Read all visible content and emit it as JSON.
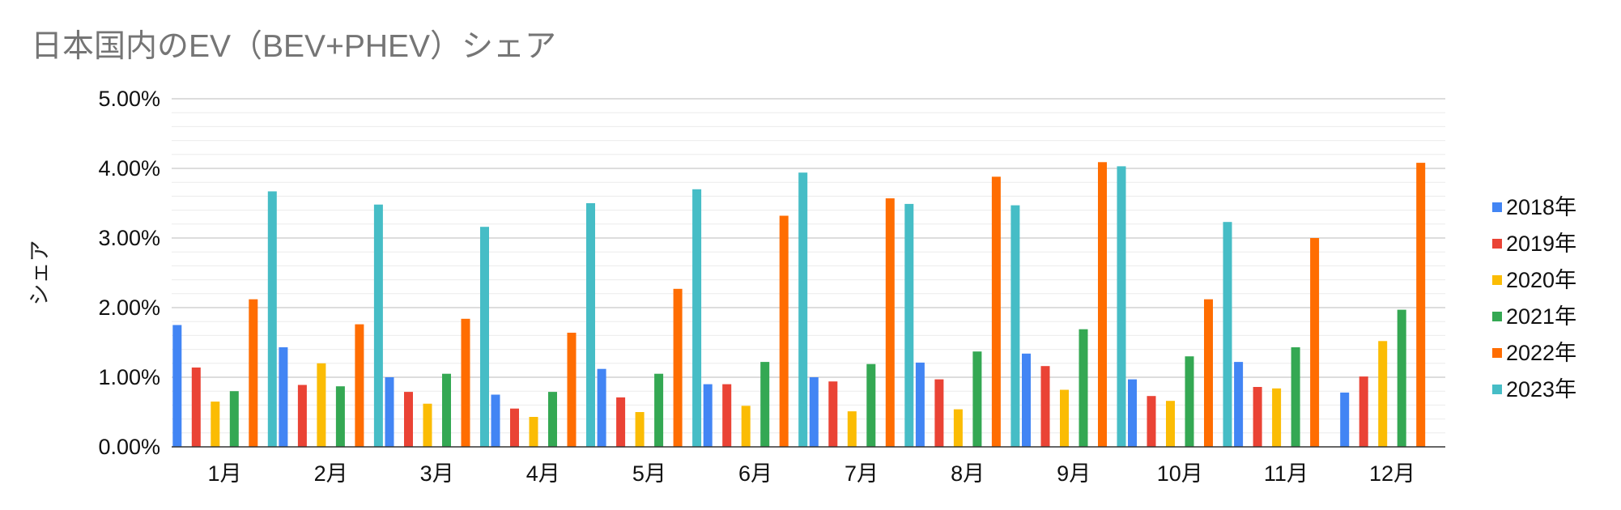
{
  "chart_data": {
    "type": "bar",
    "title": "日本国内のEV（BEV+PHEV）シェア",
    "ylabel": "シェア",
    "xlabel": "",
    "ylim": [
      0,
      5
    ],
    "y_ticks": [
      "0.00%",
      "1.00%",
      "2.00%",
      "3.00%",
      "4.00%",
      "5.00%"
    ],
    "categories": [
      "1月",
      "2月",
      "3月",
      "4月",
      "5月",
      "6月",
      "7月",
      "8月",
      "9月",
      "10月",
      "11月",
      "12月"
    ],
    "series": [
      {
        "name": "2018年",
        "color": "#4285F4",
        "values": [
          1.75,
          1.43,
          1.0,
          0.75,
          1.12,
          0.9,
          1.0,
          1.21,
          1.34,
          0.97,
          1.22,
          0.78
        ]
      },
      {
        "name": "2019年",
        "color": "#EA4335",
        "values": [
          1.14,
          0.89,
          0.79,
          0.55,
          0.71,
          0.9,
          0.94,
          0.97,
          1.16,
          0.73,
          0.86,
          1.01
        ]
      },
      {
        "name": "2020年",
        "color": "#FBBC04",
        "values": [
          0.65,
          1.2,
          0.62,
          0.43,
          0.5,
          0.59,
          0.51,
          0.54,
          0.82,
          0.66,
          0.84,
          1.52
        ]
      },
      {
        "name": "2021年",
        "color": "#34A853",
        "values": [
          0.8,
          0.87,
          1.05,
          0.79,
          1.05,
          1.22,
          1.19,
          1.37,
          1.69,
          1.3,
          1.43,
          1.97
        ]
      },
      {
        "name": "2022年",
        "color": "#FF6D01",
        "values": [
          2.12,
          1.76,
          1.84,
          1.64,
          2.27,
          3.32,
          3.57,
          3.88,
          4.09,
          2.12,
          3.0,
          4.08
        ]
      },
      {
        "name": "2023年",
        "color": "#46BDC6",
        "values": [
          3.67,
          3.48,
          3.16,
          3.5,
          3.7,
          3.94,
          3.49,
          3.47,
          4.03,
          3.23,
          null,
          null
        ]
      }
    ],
    "grid": true,
    "legend": "right"
  }
}
